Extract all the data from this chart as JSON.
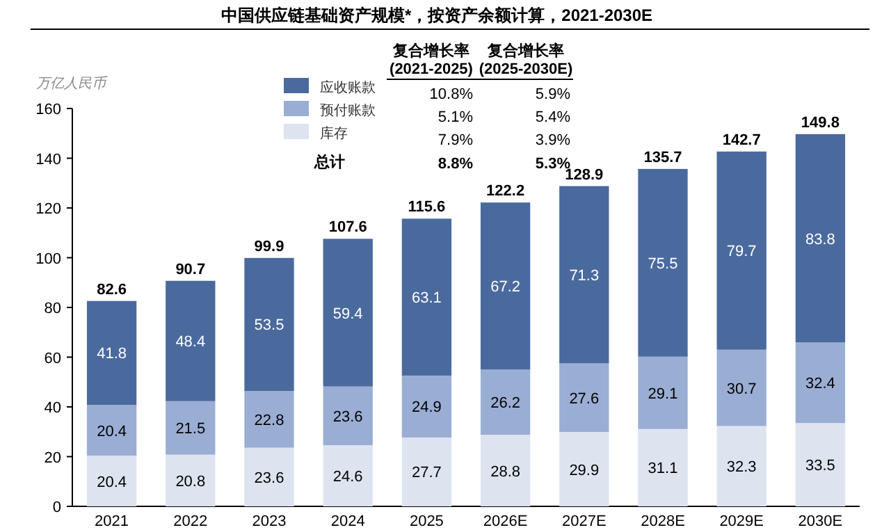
{
  "chart_data": {
    "type": "bar",
    "stacked": true,
    "title": "中国供应链基础资产规模*，按资产余额计算，2021-2030E",
    "ylabel": "万亿人民币",
    "categories": [
      "2021",
      "2022",
      "2023",
      "2024",
      "2025",
      "2026E",
      "2027E",
      "2028E",
      "2029E",
      "2030E"
    ],
    "series": [
      {
        "name": "库存",
        "color": "#dde4f0",
        "values": [
          20.4,
          20.8,
          23.6,
          24.6,
          27.7,
          28.8,
          29.9,
          31.1,
          32.3,
          33.5
        ]
      },
      {
        "name": "预付账款",
        "color": "#9aaed4",
        "values": [
          20.4,
          21.5,
          22.8,
          23.6,
          24.9,
          26.2,
          27.6,
          29.1,
          30.7,
          32.4
        ]
      },
      {
        "name": "应收账款",
        "color": "#4a6a9e",
        "values": [
          41.8,
          48.4,
          53.5,
          59.4,
          63.1,
          67.2,
          71.3,
          75.5,
          79.7,
          83.8
        ]
      }
    ],
    "totals": [
      "82.6",
      "90.7",
      "99.9",
      "107.6",
      "115.6",
      "122.2",
      "128.9",
      "135.7",
      "142.7",
      "149.8"
    ],
    "data_labels": true,
    "ylim": [
      0,
      160
    ],
    "yticks": [
      0,
      20,
      40,
      60,
      80,
      100,
      120,
      140,
      160
    ],
    "grid": false,
    "legend": "top",
    "annotations": [
      "复合增长率",
      "(2021-2025)",
      "复合增长率",
      "(2025-2030E)",
      "10.8%",
      "5.9%",
      "5.1%",
      "5.4%",
      "7.9%",
      "3.9%",
      "总计",
      "8.8%",
      "5.3%"
    ]
  }
}
